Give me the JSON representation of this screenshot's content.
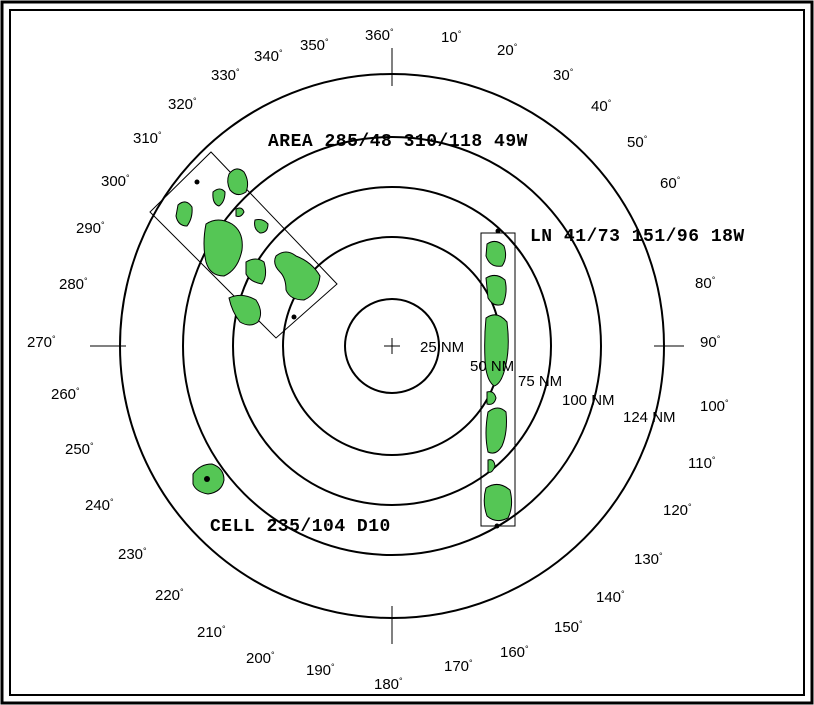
{
  "colors": {
    "background": "#ffffff",
    "precip": "#55c655",
    "outline": "#000000"
  },
  "bearings": [
    {
      "label": "360",
      "unit": "°"
    },
    {
      "label": "10",
      "unit": "°"
    },
    {
      "label": "20",
      "unit": "°"
    },
    {
      "label": "30",
      "unit": "°"
    },
    {
      "label": "40",
      "unit": "°"
    },
    {
      "label": "50",
      "unit": "°"
    },
    {
      "label": "60",
      "unit": "°"
    },
    {
      "label": "80",
      "unit": "°"
    },
    {
      "label": "90",
      "unit": "°"
    },
    {
      "label": "100",
      "unit": "°"
    },
    {
      "label": "110",
      "unit": "°"
    },
    {
      "label": "120",
      "unit": "°"
    },
    {
      "label": "130",
      "unit": "°"
    },
    {
      "label": "140",
      "unit": "°"
    },
    {
      "label": "150",
      "unit": "°"
    },
    {
      "label": "160",
      "unit": "°"
    },
    {
      "label": "170",
      "unit": "°"
    },
    {
      "label": "180",
      "unit": "°"
    },
    {
      "label": "190",
      "unit": "°"
    },
    {
      "label": "200",
      "unit": "°"
    },
    {
      "label": "210",
      "unit": "°"
    },
    {
      "label": "220",
      "unit": "°"
    },
    {
      "label": "230",
      "unit": "°"
    },
    {
      "label": "240",
      "unit": "°"
    },
    {
      "label": "250",
      "unit": "°"
    },
    {
      "label": "260",
      "unit": "°"
    },
    {
      "label": "270",
      "unit": "°"
    },
    {
      "label": "280",
      "unit": "°"
    },
    {
      "label": "290",
      "unit": "°"
    },
    {
      "label": "300",
      "unit": "°"
    },
    {
      "label": "310",
      "unit": "°"
    },
    {
      "label": "320",
      "unit": "°"
    },
    {
      "label": "330",
      "unit": "°"
    },
    {
      "label": "340",
      "unit": "°"
    },
    {
      "label": "350",
      "unit": "°"
    }
  ],
  "range_rings": [
    {
      "label": "25 NM"
    },
    {
      "label": "50 NM"
    },
    {
      "label": "75 NM"
    },
    {
      "label": "100 NM"
    },
    {
      "label": "124 NM"
    }
  ],
  "reports": {
    "area": "AREA 285/48 310/118 49W",
    "line": "LN 41/73 151/96 18W",
    "cell": "CELL 235/104 D10"
  }
}
